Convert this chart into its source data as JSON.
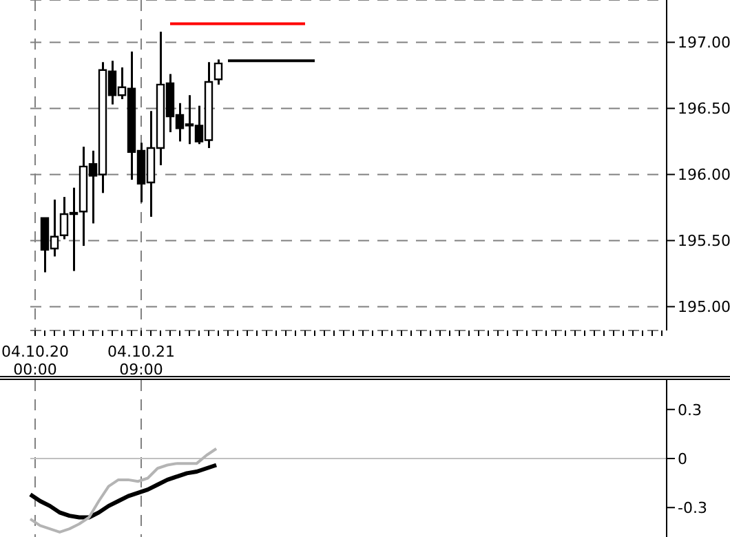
{
  "chart_data": [
    {
      "type": "candlestick",
      "categories": [
        "04.10.20\n00:00",
        null,
        null,
        null,
        null,
        null,
        null,
        null,
        null,
        null,
        null,
        "04.10.21\n09:00",
        null,
        null,
        null,
        null,
        null,
        null,
        null,
        null,
        null,
        null,
        null,
        null,
        null,
        null,
        null,
        null,
        null,
        null,
        null,
        null,
        null,
        null,
        null,
        null,
        null,
        null,
        null,
        null,
        null,
        null,
        null,
        null,
        null,
        null,
        null,
        null,
        null,
        null,
        null,
        null,
        null,
        null,
        null,
        null,
        null,
        null,
        null,
        null,
        null,
        null,
        null,
        null,
        null,
        null
      ],
      "ohlc": [
        null,
        [
          195.67,
          195.67,
          195.26,
          195.43
        ],
        [
          195.44,
          195.81,
          195.38,
          195.53
        ],
        [
          195.54,
          195.83,
          195.51,
          195.7
        ],
        [
          195.7,
          195.9,
          195.27,
          195.71
        ],
        [
          195.72,
          196.21,
          195.46,
          196.06
        ],
        [
          196.08,
          196.18,
          195.63,
          195.99
        ],
        [
          196.0,
          196.85,
          195.86,
          196.79
        ],
        [
          196.78,
          196.86,
          196.53,
          196.6
        ],
        [
          196.6,
          196.81,
          196.57,
          196.66
        ],
        [
          196.65,
          196.93,
          195.96,
          196.17
        ],
        [
          196.18,
          196.24,
          195.79,
          195.93
        ],
        [
          195.94,
          196.48,
          195.68,
          196.2
        ],
        [
          196.2,
          197.08,
          196.07,
          196.68
        ],
        [
          196.69,
          196.76,
          196.32,
          196.44
        ],
        [
          196.45,
          196.54,
          196.25,
          196.35
        ],
        [
          196.38,
          196.6,
          196.23,
          196.37
        ],
        [
          196.37,
          196.52,
          196.23,
          196.25
        ],
        [
          196.26,
          196.85,
          196.2,
          196.7
        ],
        [
          196.72,
          196.87,
          196.68,
          196.84
        ],
        null,
        null,
        null,
        null,
        null,
        null,
        null,
        null,
        null,
        null,
        null,
        null,
        null,
        null,
        null,
        null,
        null,
        null,
        null,
        null,
        null,
        null,
        null,
        null,
        null,
        null,
        null,
        null,
        null,
        null,
        null,
        null,
        null,
        null,
        null,
        null,
        null,
        null,
        null,
        null,
        null,
        null,
        null,
        null,
        null,
        null
      ],
      "series": [
        {
          "type": "line",
          "color": "#ff0000",
          "values": [
            null,
            null,
            null,
            null,
            null,
            null,
            null,
            null,
            null,
            null,
            null,
            null,
            null,
            null,
            197.14,
            197.14,
            197.14,
            197.14,
            197.14,
            197.14,
            197.14,
            197.14,
            197.14,
            197.14,
            197.14,
            197.14,
            197.14,
            197.14,
            197.14,
            null,
            null,
            null,
            null,
            null,
            null,
            null,
            null,
            null,
            null,
            null,
            null,
            null,
            null,
            null,
            null,
            null,
            null,
            null,
            null,
            null,
            null,
            null,
            null,
            null,
            null,
            null,
            null,
            null,
            null,
            null,
            null,
            null,
            null,
            null,
            null,
            null
          ]
        },
        {
          "type": "line",
          "color": "#000000",
          "values": [
            null,
            null,
            null,
            null,
            null,
            null,
            null,
            null,
            null,
            null,
            null,
            null,
            null,
            null,
            null,
            null,
            null,
            null,
            null,
            null,
            196.86,
            196.86,
            196.86,
            196.86,
            196.86,
            196.86,
            196.86,
            196.86,
            196.86,
            196.86,
            null,
            null,
            null,
            null,
            null,
            null,
            null,
            null,
            null,
            null,
            null,
            null,
            null,
            null,
            null,
            null,
            null,
            null,
            null,
            null,
            null,
            null,
            null,
            null,
            null,
            null,
            null,
            null,
            null,
            null,
            null,
            null,
            null,
            null,
            null,
            null
          ]
        }
      ],
      "ylim": [
        194.82,
        197.32
      ],
      "yticks": [
        {
          "value": 195,
          "label": "195.00"
        },
        {
          "value": 195.5,
          "label": "195.50"
        },
        {
          "value": 196,
          "label": "196.00"
        },
        {
          "value": 196.5,
          "label": "196.50"
        },
        {
          "value": 197,
          "label": "197.00"
        }
      ],
      "grid": true
    },
    {
      "type": "line",
      "categories": [
        null,
        null,
        null,
        null,
        null,
        null,
        null,
        null,
        null,
        null,
        null,
        null,
        null,
        null,
        null,
        null,
        null,
        null,
        null,
        null,
        null,
        null,
        null,
        null,
        null,
        null,
        null,
        null,
        null,
        null,
        null,
        null,
        null,
        null,
        null,
        null,
        null,
        null,
        null,
        null,
        null,
        null,
        null,
        null,
        null,
        null,
        null,
        null,
        null,
        null,
        null,
        null,
        null,
        null,
        null,
        null,
        null,
        null,
        null,
        null,
        null,
        null,
        null,
        null,
        null,
        null
      ],
      "series": [
        {
          "color": "#000000",
          "values": [
            -0.22,
            -0.26,
            -0.29,
            -0.33,
            -0.35,
            -0.36,
            -0.36,
            -0.33,
            -0.29,
            -0.26,
            -0.23,
            -0.21,
            -0.19,
            -0.16,
            -0.13,
            -0.11,
            -0.09,
            -0.08,
            -0.06,
            -0.04,
            null,
            null,
            null,
            null,
            null,
            null,
            null,
            null,
            null,
            null,
            null,
            null,
            null,
            null,
            null,
            null,
            null,
            null,
            null,
            null,
            null,
            null,
            null,
            null,
            null,
            null,
            null,
            null,
            null,
            null,
            null,
            null,
            null,
            null,
            null,
            null,
            null,
            null,
            null,
            null,
            null,
            null,
            null,
            null,
            null,
            null
          ]
        },
        {
          "color": "#b4b4b4",
          "values": [
            -0.37,
            -0.41,
            -0.43,
            -0.45,
            -0.43,
            -0.4,
            -0.36,
            -0.26,
            -0.17,
            -0.13,
            -0.13,
            -0.14,
            -0.12,
            -0.06,
            -0.04,
            -0.03,
            -0.03,
            -0.03,
            0.02,
            0.06,
            null,
            null,
            null,
            null,
            null,
            null,
            null,
            null,
            null,
            null,
            null,
            null,
            null,
            null,
            null,
            null,
            null,
            null,
            null,
            null,
            null,
            null,
            null,
            null,
            null,
            null,
            null,
            null,
            null,
            null,
            null,
            null,
            null,
            null,
            null,
            null,
            null,
            null,
            null,
            null,
            null,
            null,
            null,
            null,
            null,
            null
          ]
        }
      ],
      "ylim": [
        -0.48,
        0.48
      ],
      "yticks": [
        -0.3,
        0,
        0.3
      ],
      "grid": "x",
      "tick_labels": "y",
      "ref_lines": [
        {
          "axis": "y",
          "value": 0,
          "color": "#c0c0c0"
        }
      ]
    }
  ]
}
